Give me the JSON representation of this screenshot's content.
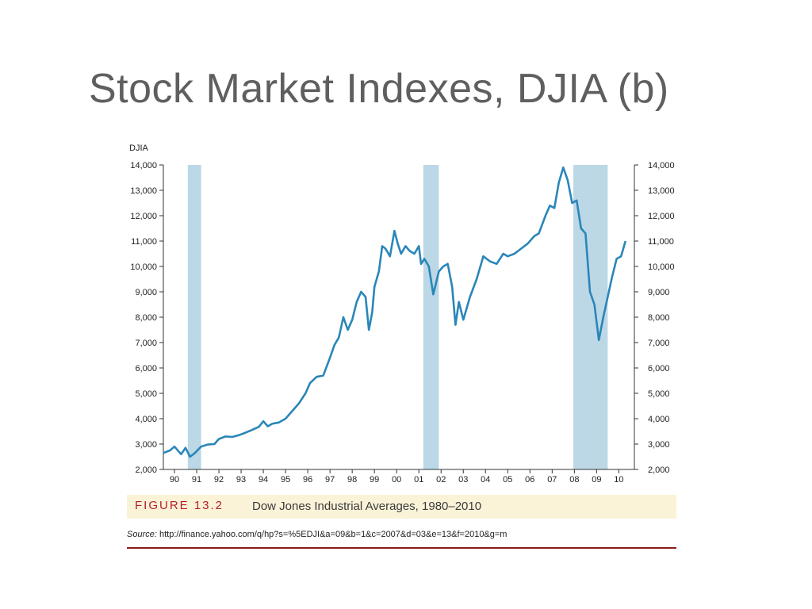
{
  "slide": {
    "title": "Stock Market Indexes, DJIA (b)"
  },
  "figure": {
    "label": "FIGURE 13.2",
    "caption": "Dow Jones Industrial Averages, 1980–2010",
    "source_label": "Source:",
    "source_text": "http://finance.yahoo.com/q/hp?s=%5EDJI&a=09&b=1&c=2007&d=03&e=13&f=2010&g=m"
  },
  "colors": {
    "line": "#2a86b8",
    "recession": "#bcd8e6",
    "accent_red": "#b21f2a"
  },
  "chart_data": {
    "type": "line",
    "ylabel": "DJIA",
    "ylim": [
      2000,
      14000
    ],
    "y_ticks": [
      "2,000",
      "3,000",
      "4,000",
      "5,000",
      "6,000",
      "7,000",
      "8,000",
      "9,000",
      "10,000",
      "11,000",
      "12,000",
      "13,000",
      "14,000"
    ],
    "x_tick_labels": [
      "90",
      "91",
      "92",
      "93",
      "94",
      "95",
      "96",
      "97",
      "98",
      "99",
      "00",
      "01",
      "02",
      "03",
      "04",
      "05",
      "06",
      "07",
      "08",
      "09",
      "10"
    ],
    "recession_bands": [
      [
        1990.6,
        1991.2
      ],
      [
        2001.2,
        2001.9
      ],
      [
        2007.95,
        2009.5
      ]
    ],
    "grid": false,
    "series": [
      {
        "x": [
          1989.5,
          1989.8,
          1990.0,
          1990.3,
          1990.5,
          1990.7,
          1990.9,
          1991.2,
          1991.5,
          1991.8,
          1992.0,
          1992.3,
          1992.6,
          1992.9,
          1993.2,
          1993.5,
          1993.8,
          1994.0,
          1994.2,
          1994.4,
          1994.7,
          1995.0,
          1995.3,
          1995.6,
          1995.9,
          1996.1,
          1996.4,
          1996.7,
          1997.0,
          1997.2,
          1997.4,
          1997.6,
          1997.8,
          1998.0,
          1998.2,
          1998.4,
          1998.6,
          1998.75,
          1998.9,
          1999.0,
          1999.2,
          1999.35,
          1999.5,
          1999.7,
          1999.9,
          2000.05,
          2000.2,
          2000.4,
          2000.6,
          2000.8,
          2001.0,
          2001.1,
          2001.25,
          2001.45,
          2001.65,
          2001.9,
          2002.1,
          2002.3,
          2002.5,
          2002.65,
          2002.8,
          2003.0,
          2003.3,
          2003.6,
          2003.9,
          2004.2,
          2004.5,
          2004.8,
          2005.0,
          2005.3,
          2005.6,
          2005.9,
          2006.2,
          2006.4,
          2006.7,
          2006.9,
          2007.1,
          2007.3,
          2007.5,
          2007.7,
          2007.9,
          2008.1,
          2008.3,
          2008.5,
          2008.7,
          2008.9,
          2009.1,
          2009.3,
          2009.5,
          2009.7,
          2009.9,
          2010.1,
          2010.3
        ],
        "y": [
          2650,
          2750,
          2900,
          2600,
          2850,
          2500,
          2630,
          2900,
          2980,
          3000,
          3200,
          3300,
          3280,
          3350,
          3450,
          3560,
          3680,
          3900,
          3700,
          3800,
          3850,
          4000,
          4300,
          4600,
          5000,
          5400,
          5650,
          5700,
          6400,
          6900,
          7200,
          8000,
          7500,
          7900,
          8600,
          9000,
          8800,
          7500,
          8200,
          9200,
          9800,
          10800,
          10700,
          10400,
          11400,
          10900,
          10500,
          10800,
          10600,
          10500,
          10800,
          10100,
          10300,
          10000,
          8900,
          9800,
          10000,
          10100,
          9200,
          7700,
          8600,
          7900,
          8800,
          9500,
          10400,
          10200,
          10100,
          10500,
          10400,
          10500,
          10700,
          10900,
          11200,
          11300,
          12000,
          12400,
          12300,
          13300,
          13900,
          13400,
          12500,
          12600,
          11500,
          11300,
          9000,
          8500,
          7100,
          8000,
          8800,
          9600,
          10300,
          10400,
          11000
        ]
      }
    ]
  }
}
